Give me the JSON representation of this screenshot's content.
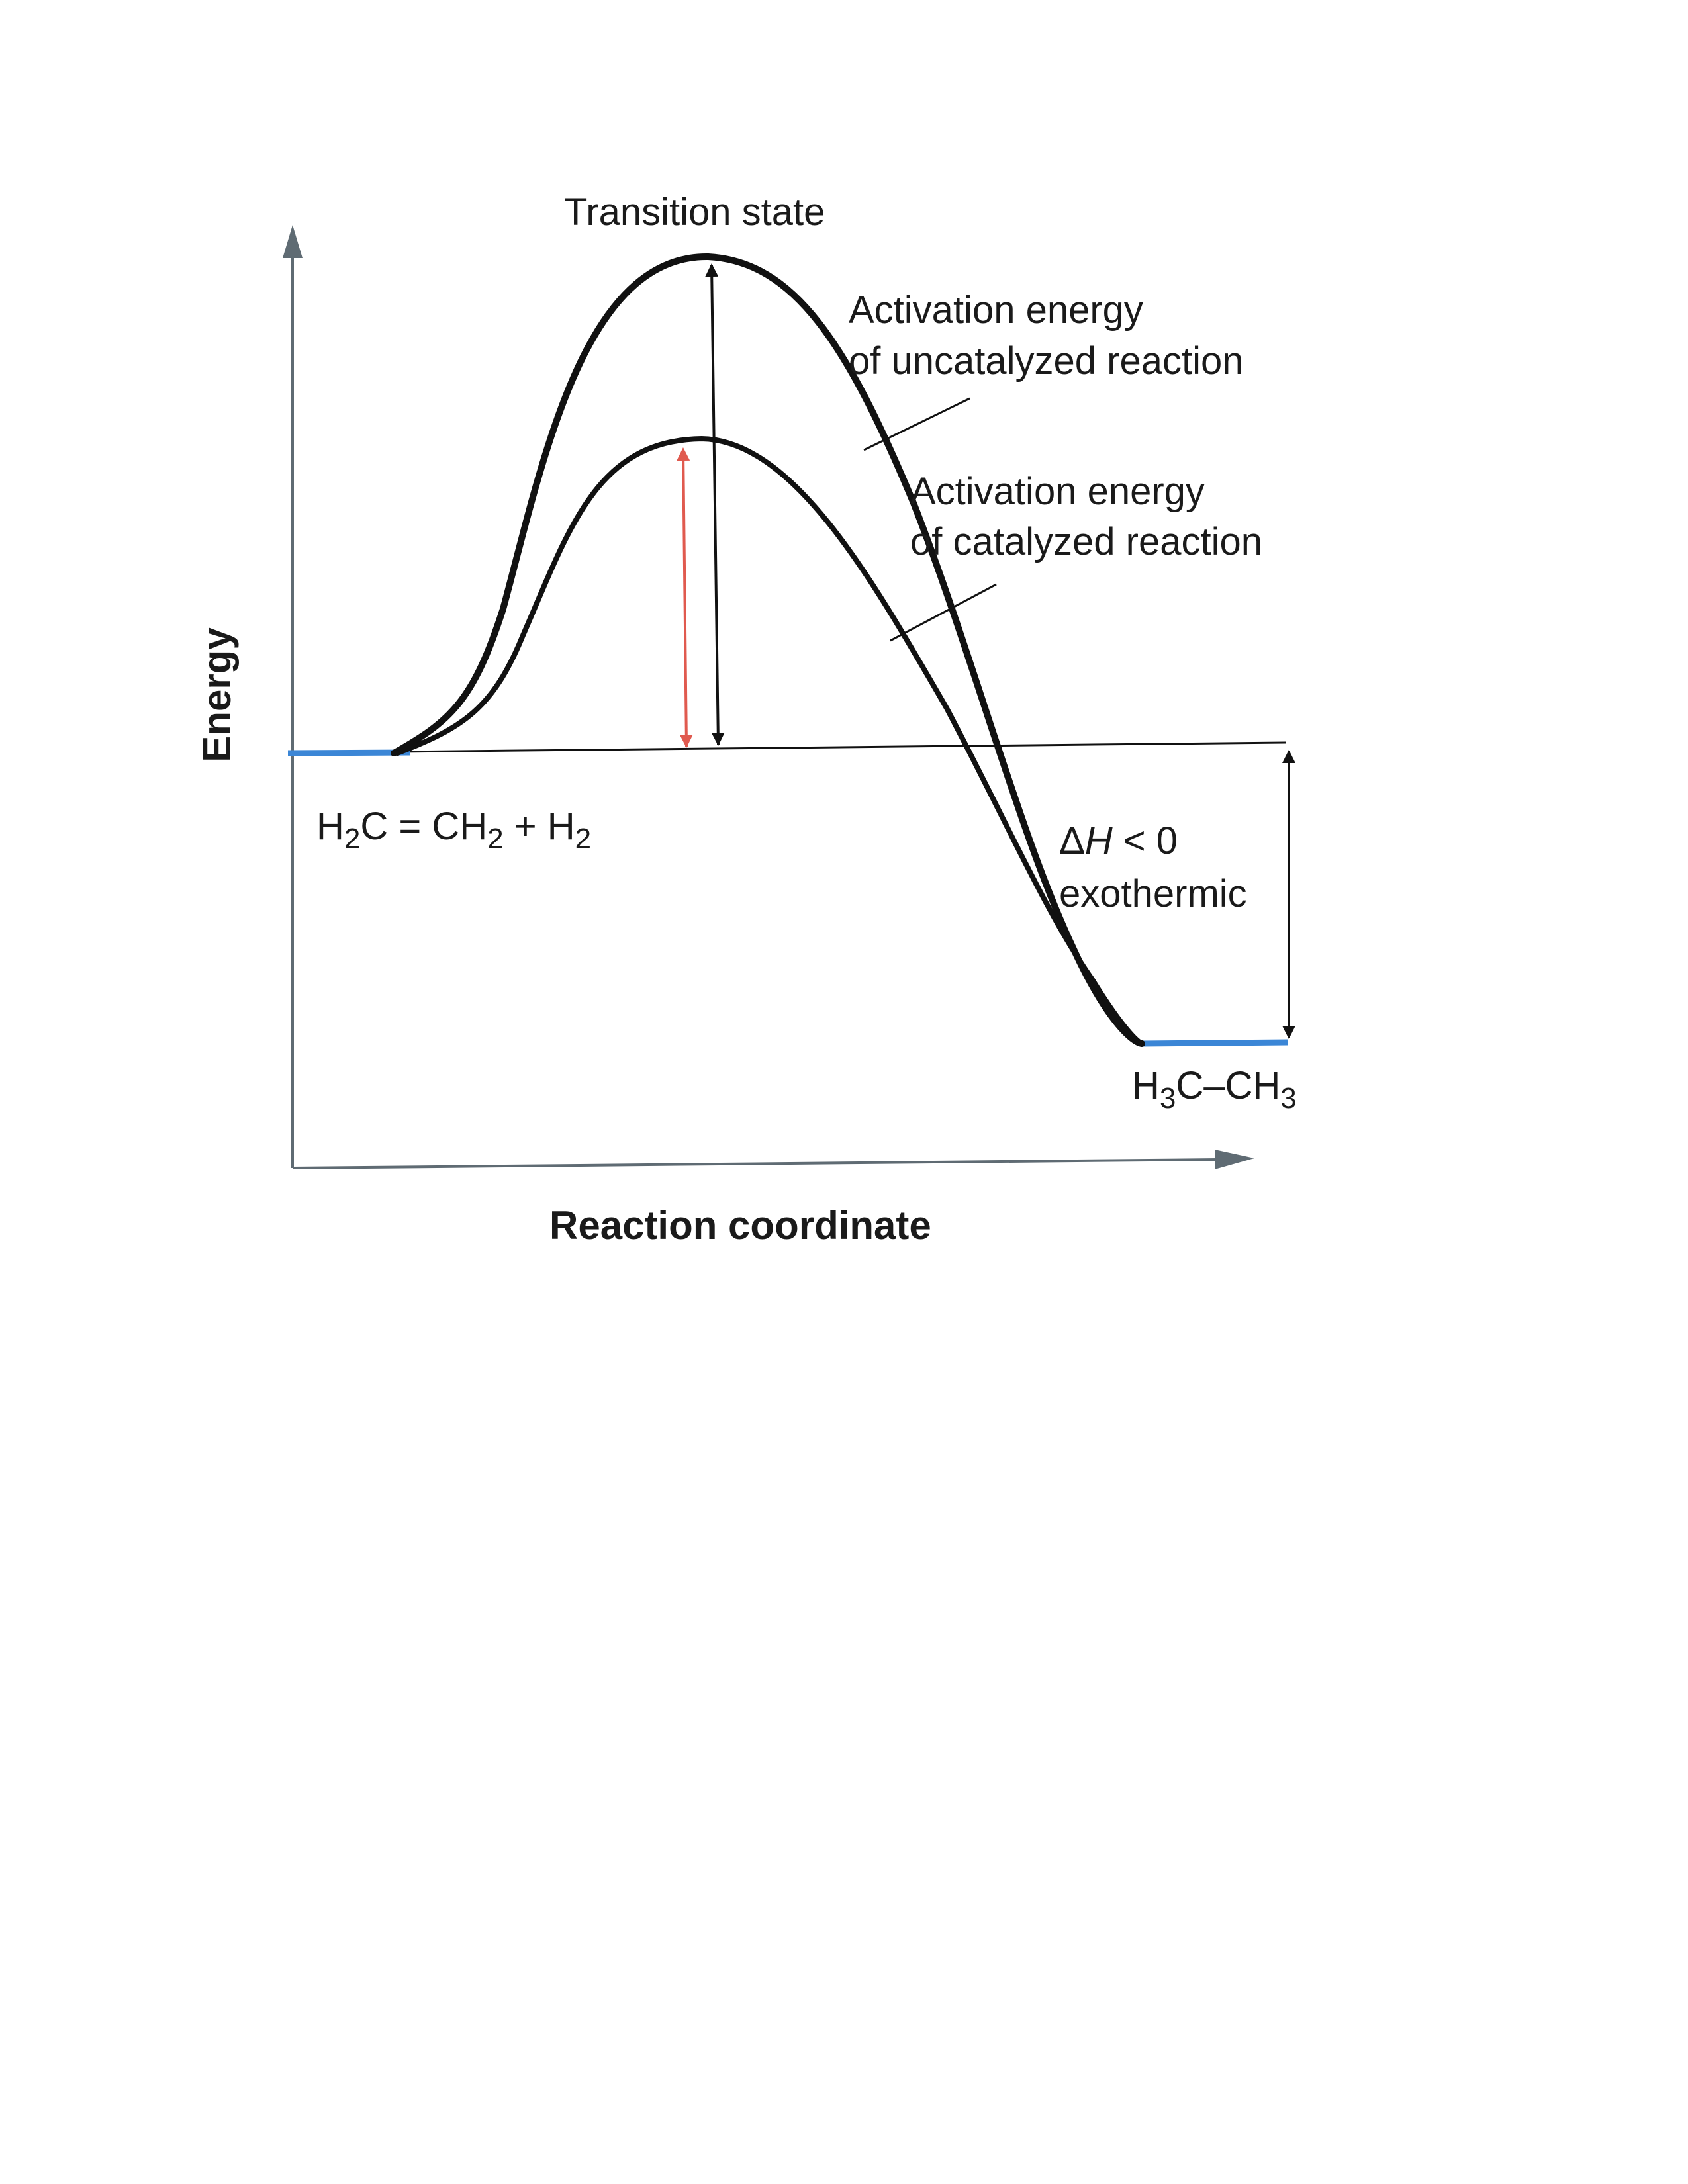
{
  "diagram": {
    "y_axis_label": "Energy",
    "x_axis_label": "Reaction coordinate",
    "transition_state_label": "Transition state",
    "uncatalyzed_label": {
      "line1": "Activation energy",
      "line2": "of uncatalyzed reaction"
    },
    "catalyzed_label": {
      "line1": "Activation energy",
      "line2": "of catalyzed reaction"
    },
    "reactants": {
      "part1": "H",
      "sub1": "2",
      "part2": "C = CH",
      "sub2": "2",
      "part3": " + H",
      "sub3": "2"
    },
    "products": {
      "part1": "H",
      "sub1": "3",
      "part2": "C–CH",
      "sub2": "3"
    },
    "enthalpy": {
      "delta": "Δ",
      "h": "H",
      "rest": " < 0"
    },
    "exothermic_label": "exothermic",
    "colors": {
      "axis": "#5f6b73",
      "curve": "#111111",
      "energy_level": "#3b86d6",
      "catalyzed_arrow": "#e05a4f",
      "uncatalyzed_arrow": "#111111"
    }
  }
}
